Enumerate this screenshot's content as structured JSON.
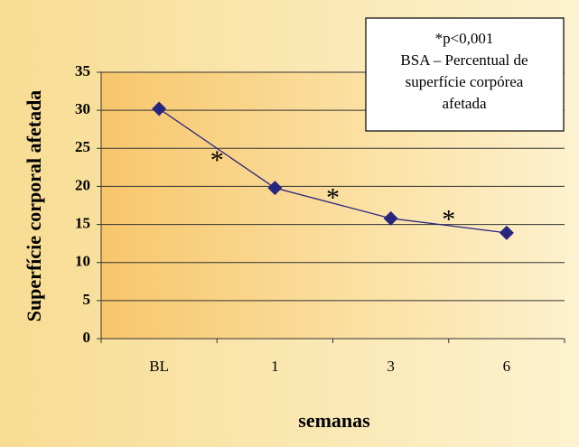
{
  "chart_data": {
    "type": "line",
    "categories": [
      "BL",
      "1",
      "3",
      "6"
    ],
    "values": [
      30.2,
      19.8,
      15.8,
      13.9
    ],
    "color": "#26267f",
    "ylim": [
      0,
      35
    ],
    "yticks": [
      0,
      5,
      10,
      15,
      20,
      25,
      30,
      35
    ],
    "grid": true,
    "y_label": "Superfície corporal afetada",
    "x_label": "semanas",
    "note": [
      "*p<0,001",
      "BSA – Percentual de",
      "superfície corpórea",
      "afetada"
    ],
    "annotations": [
      "*",
      "*",
      "*"
    ]
  }
}
